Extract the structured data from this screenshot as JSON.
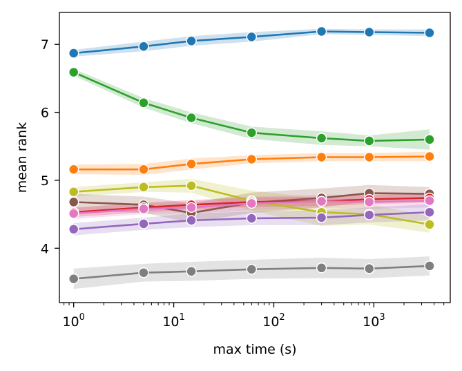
{
  "chart_data": {
    "type": "line",
    "xlabel": "max time (s)",
    "ylabel": "mean rank",
    "x_scale": "log",
    "xlim": [
      0.72,
      5800
    ],
    "ylim": [
      3.2,
      7.47
    ],
    "x_ticks": [
      {
        "value": 1,
        "base": "10",
        "exp": "0"
      },
      {
        "value": 10,
        "base": "10",
        "exp": "1"
      },
      {
        "value": 100,
        "base": "10",
        "exp": "2"
      },
      {
        "value": 1000,
        "base": "10",
        "exp": "3"
      }
    ],
    "y_ticks": [
      {
        "value": 4,
        "label": "4"
      },
      {
        "value": 5,
        "label": "5"
      },
      {
        "value": 6,
        "label": "6"
      },
      {
        "value": 7,
        "label": "7"
      }
    ],
    "grid": false,
    "legend": "none",
    "x": [
      1,
      5,
      15,
      60,
      300,
      900,
      3600
    ],
    "series": [
      {
        "color": "#1f77b4",
        "values": [
          6.87,
          6.97,
          7.05,
          7.11,
          7.19,
          7.18,
          7.17
        ],
        "band": [
          0.05,
          0.07,
          0.07,
          0.07,
          0.04,
          0.04,
          0.05
        ]
      },
      {
        "color": "#2ca02c",
        "values": [
          6.59,
          6.14,
          5.92,
          5.7,
          5.62,
          5.58,
          5.6
        ],
        "band": [
          0.05,
          0.07,
          0.08,
          0.09,
          0.1,
          0.08,
          0.15
        ]
      },
      {
        "color": "#ff7f0e",
        "values": [
          5.16,
          5.16,
          5.24,
          5.31,
          5.34,
          5.34,
          5.35
        ],
        "band": [
          0.07,
          0.08,
          0.08,
          0.06,
          0.06,
          0.06,
          0.07
        ]
      },
      {
        "color": "#bcbd22",
        "values": [
          4.83,
          4.9,
          4.92,
          4.7,
          4.53,
          4.5,
          4.35
        ],
        "band": [
          0.07,
          0.07,
          0.1,
          0.15,
          0.2,
          0.15,
          0.12
        ]
      },
      {
        "color": "#8c564b",
        "values": [
          4.68,
          4.64,
          4.52,
          4.67,
          4.74,
          4.81,
          4.8
        ],
        "band": [
          0.12,
          0.12,
          0.14,
          0.15,
          0.14,
          0.12,
          0.1
        ]
      },
      {
        "color": "#d62728",
        "values": [
          4.53,
          4.6,
          4.64,
          4.68,
          4.69,
          4.72,
          4.74
        ],
        "band": [
          0.07,
          0.07,
          0.07,
          0.07,
          0.07,
          0.07,
          0.07
        ]
      },
      {
        "color": "#e377c2",
        "values": [
          4.51,
          4.58,
          4.6,
          4.66,
          4.69,
          4.68,
          4.7
        ],
        "band": [
          0.08,
          0.08,
          0.09,
          0.1,
          0.1,
          0.1,
          0.1
        ]
      },
      {
        "color": "#9467bd",
        "values": [
          4.28,
          4.36,
          4.41,
          4.44,
          4.45,
          4.49,
          4.53
        ],
        "band": [
          0.09,
          0.09,
          0.1,
          0.1,
          0.11,
          0.11,
          0.12
        ]
      },
      {
        "color": "#7f7f7f",
        "values": [
          3.55,
          3.64,
          3.66,
          3.69,
          3.71,
          3.7,
          3.74
        ],
        "band": [
          0.15,
          0.13,
          0.14,
          0.14,
          0.15,
          0.14,
          0.14
        ]
      }
    ]
  }
}
